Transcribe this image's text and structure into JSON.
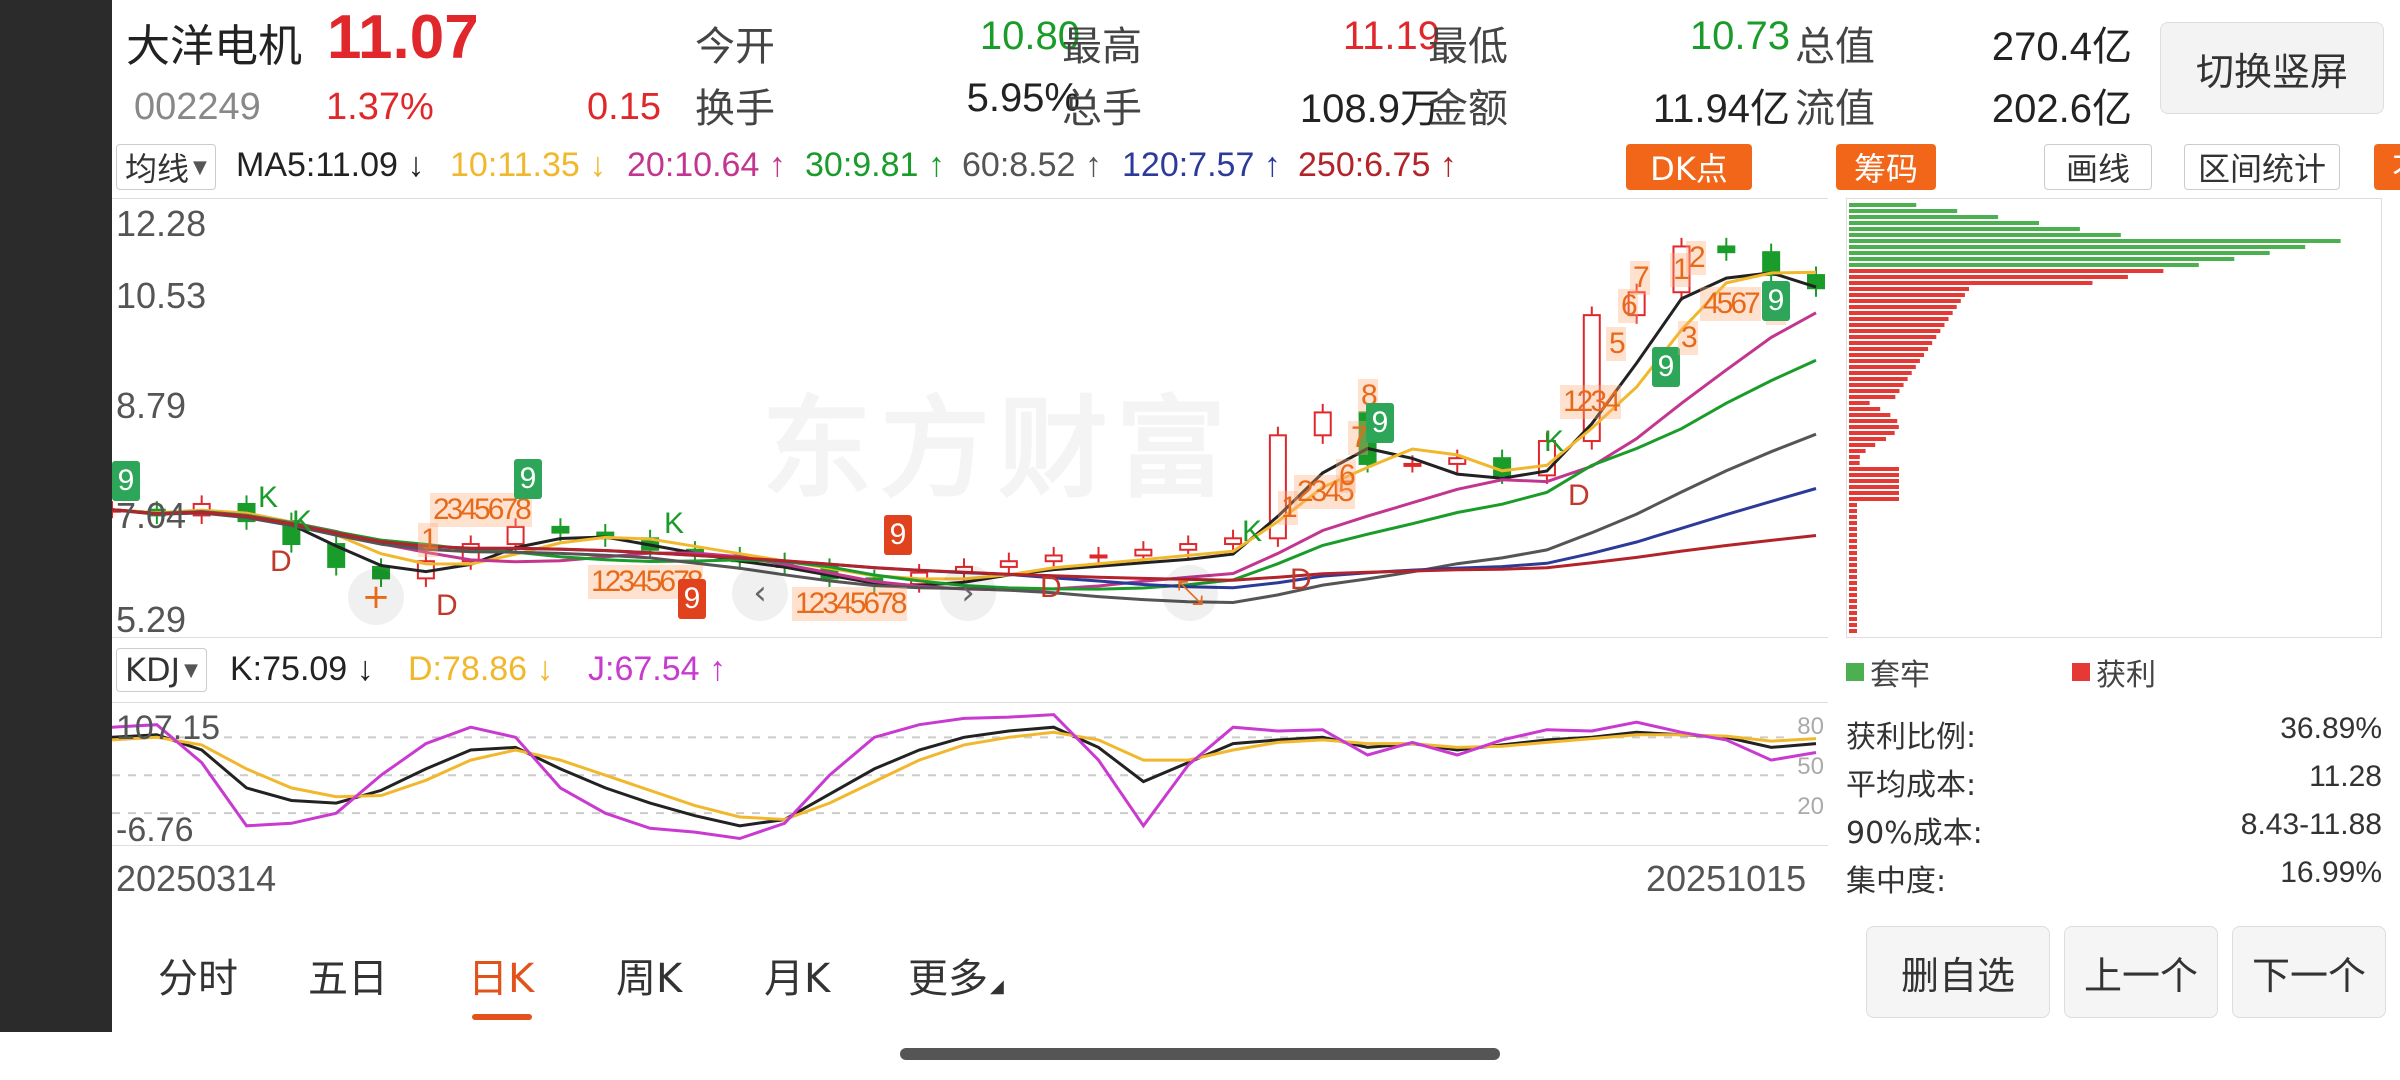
{
  "stock": {
    "name": "大洋电机",
    "price": "11.07",
    "code": "002249",
    "change_pct": "1.37%",
    "change": "0.15"
  },
  "quote": {
    "open_label": "今开",
    "open": "10.80",
    "high_label": "最高",
    "high": "11.19",
    "low_label": "最低",
    "low": "10.73",
    "mktcap_label": "总值",
    "mktcap": "270.4亿",
    "turnover_label": "换手",
    "turnover": "5.95%",
    "volume_label": "总手",
    "volume": "108.9万",
    "amount_label": "金额",
    "amount": "11.94亿",
    "float_label": "流值",
    "float_cap": "202.6亿"
  },
  "switch_button": "切换竖屏",
  "ma_bar": {
    "selector": "均线",
    "items": [
      {
        "text": "MA5:11.09 ↓",
        "color": "#222222"
      },
      {
        "text": "10:11.35 ↓",
        "color": "#f1b82d"
      },
      {
        "text": "20:10.64 ↑",
        "color": "#c2368f"
      },
      {
        "text": "30:9.81 ↑",
        "color": "#1a9c2a"
      },
      {
        "text": "60:8.52 ↑",
        "color": "#555555"
      },
      {
        "text": "120:7.57 ↑",
        "color": "#2c3a99"
      },
      {
        "text": "250:6.75 ↑",
        "color": "#b3232a"
      }
    ],
    "buttons": {
      "dk": "DK点",
      "chips": "筹码",
      "draw": "画线",
      "interval": "区间统计",
      "adjust": "不复权"
    }
  },
  "price_axis": [
    "12.28",
    "10.53",
    "8.79",
    "7.04",
    "5.29"
  ],
  "signals": {
    "k": "K",
    "d": "D",
    "nine": "9",
    "seq_a": "1",
    "seq_b": "2345678",
    "seq_c": "2345",
    "seq_d": "6",
    "seq_e": "7",
    "seq_f": "8",
    "seq_g": "1234",
    "seq_h": "5",
    "seq_i": "6",
    "seq_j": "7",
    "seq_k": "1",
    "seq_l": "2",
    "seq_m": "3",
    "seq_n": "4567",
    "seq_o": "8",
    "seq_p": "12345678",
    "seq_q": "12345678"
  },
  "watermark": "东方财富",
  "chip_legend": {
    "trapped": "套牢",
    "profit": "获利",
    "trapped_color": "#4caf50",
    "profit_color": "#e53935"
  },
  "chip_stats": [
    {
      "label": "获利比例:",
      "value": "36.89%"
    },
    {
      "label": "平均成本:",
      "value": "11.28"
    },
    {
      "label": "90%成本:",
      "value": "8.43-11.88"
    },
    {
      "label": "集中度:",
      "value": "16.99%"
    }
  ],
  "kdj": {
    "selector": "KDJ",
    "k": "K:75.09 ↓",
    "d": "D:78.86 ↓",
    "j": "J:67.54 ↑",
    "y_top": "107.15",
    "y_bottom": "-6.76",
    "ref_80": "80",
    "ref_50": "50",
    "ref_20": "20"
  },
  "dates": {
    "start": "20250314",
    "end": "20251015"
  },
  "period_tabs": [
    "分时",
    "五日",
    "日K",
    "周K",
    "月K",
    "更多"
  ],
  "active_tab": "日K",
  "bottom_buttons": {
    "remove": "删自选",
    "prev": "上一个",
    "next": "下一个"
  },
  "chart_data": [
    {
      "type": "candlestick",
      "x_range": [
        "20250314",
        "20251015"
      ],
      "ylim": [
        5.29,
        12.28
      ],
      "y_ticks": [
        12.28,
        10.53,
        8.79,
        7.04,
        5.29
      ],
      "series": [
        {
          "name": "MA5",
          "last": 11.09,
          "color": "#222222"
        },
        {
          "name": "10",
          "last": 11.35,
          "color": "#f1b82d"
        },
        {
          "name": "20",
          "last": 10.64,
          "color": "#c2368f"
        },
        {
          "name": "30",
          "last": 9.81,
          "color": "#1a9c2a"
        },
        {
          "name": "60",
          "last": 8.52,
          "color": "#555555"
        },
        {
          "name": "120",
          "last": 7.57,
          "color": "#2c3a99"
        },
        {
          "name": "250",
          "last": 6.75,
          "color": "#b3232a"
        }
      ],
      "close_trend": [
        7.2,
        7.1,
        7.3,
        7.0,
        6.6,
        6.2,
        6.0,
        6.3,
        6.6,
        6.9,
        6.8,
        6.7,
        6.5,
        6.4,
        6.3,
        6.2,
        6.0,
        5.9,
        6.1,
        6.2,
        6.3,
        6.4,
        6.4,
        6.5,
        6.6,
        6.7,
        8.5,
        8.9,
        8.0,
        8.0,
        8.1,
        7.8,
        8.4,
        10.6,
        11.0,
        11.8,
        11.7,
        11.3,
        11.07
      ]
    },
    {
      "type": "line",
      "title": "KDJ",
      "ylim": [
        -6.76,
        107.15
      ],
      "series": [
        {
          "name": "K",
          "last": 75.09,
          "color": "#222222"
        },
        {
          "name": "D",
          "last": 78.86,
          "color": "#f1b82d"
        },
        {
          "name": "J",
          "last": 67.54,
          "color": "#c83ad0"
        }
      ],
      "K": [
        80,
        82,
        70,
        40,
        30,
        28,
        38,
        55,
        70,
        72,
        55,
        40,
        28,
        18,
        10,
        15,
        35,
        55,
        70,
        80,
        85,
        88,
        72,
        45,
        60,
        75,
        78,
        80,
        72,
        75,
        70,
        74,
        78,
        80,
        84,
        82,
        80,
        72,
        75
      ],
      "D": [
        78,
        80,
        74,
        55,
        40,
        33,
        34,
        46,
        62,
        70,
        62,
        50,
        38,
        26,
        17,
        15,
        28,
        45,
        62,
        74,
        80,
        84,
        78,
        62,
        62,
        70,
        76,
        78,
        75,
        75,
        72,
        73,
        76,
        79,
        82,
        82,
        81,
        77,
        79
      ],
      "J": [
        88,
        90,
        60,
        10,
        12,
        20,
        50,
        75,
        88,
        80,
        40,
        20,
        8,
        5,
        0,
        12,
        50,
        80,
        90,
        95,
        96,
        98,
        62,
        10,
        58,
        88,
        85,
        86,
        66,
        76,
        66,
        78,
        86,
        85,
        92,
        84,
        78,
        62,
        68
      ]
    },
    {
      "type": "bar",
      "title": "筹码分布",
      "orientation": "horizontal",
      "ylim": [
        5.29,
        12.28
      ],
      "series": [
        {
          "name": "套牢",
          "color": "#4caf50"
        },
        {
          "name": "获利",
          "color": "#e53935"
        }
      ]
    }
  ]
}
